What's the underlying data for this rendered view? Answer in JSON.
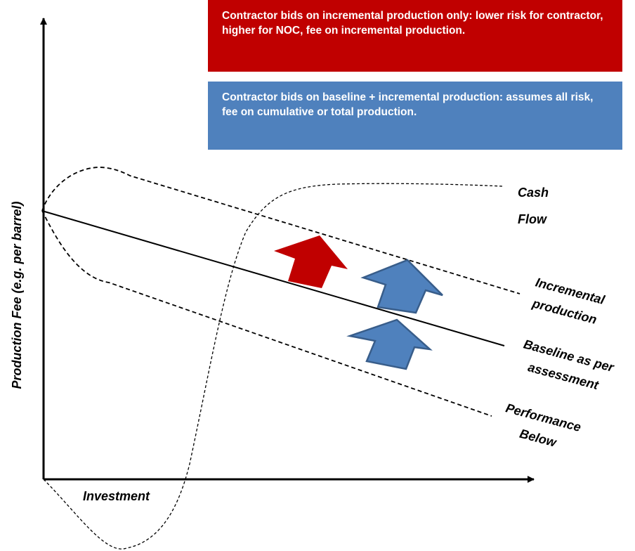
{
  "boxes": [
    {
      "text": "Contractor bids on incremental production only: lower risk for contractor, higher for NOC, fee on incremental production."
    },
    {
      "text": "Contractor bids on baseline + incremental production: assumes all risk, fee on cumulative or total production."
    }
  ],
  "axes": {
    "y_label": "Production Fee (e.g. per barrel)",
    "x_label": "Investment"
  },
  "labels": [
    {
      "lines": [
        "Cash",
        "Flow"
      ]
    },
    {
      "lines": [
        "Incremental",
        "production"
      ]
    },
    {
      "lines": [
        "Baseline as per",
        "assessment"
      ]
    },
    {
      "lines": [
        "Performance",
        "Below"
      ]
    }
  ]
}
